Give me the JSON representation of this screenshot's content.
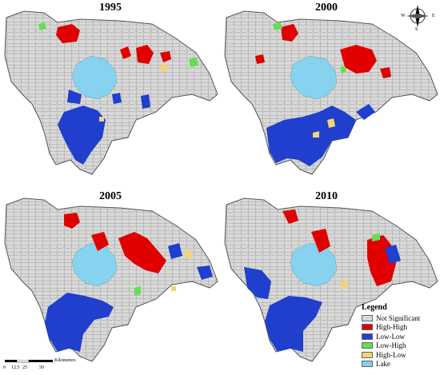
{
  "panels": [
    {
      "year": "1995"
    },
    {
      "year": "2000"
    },
    {
      "year": "2005"
    },
    {
      "year": "2010"
    }
  ],
  "legend": {
    "title": "Legend",
    "items": [
      {
        "label": "Not Significant",
        "color": "#d9d9d9"
      },
      {
        "label": "High-High",
        "color": "#e00000"
      },
      {
        "label": "Low-Low",
        "color": "#1f3fcc"
      },
      {
        "label": "Low-High",
        "color": "#66dd55"
      },
      {
        "label": "High-Low",
        "color": "#f3d27a"
      },
      {
        "label": "Lake",
        "color": "#87d2ee"
      }
    ]
  },
  "scalebar": {
    "ticks": [
      "0",
      "12.5",
      "25",
      "50"
    ],
    "unit": "Kilometers"
  },
  "compass": {
    "n": "N",
    "s": "S",
    "e": "E",
    "w": "W"
  }
}
